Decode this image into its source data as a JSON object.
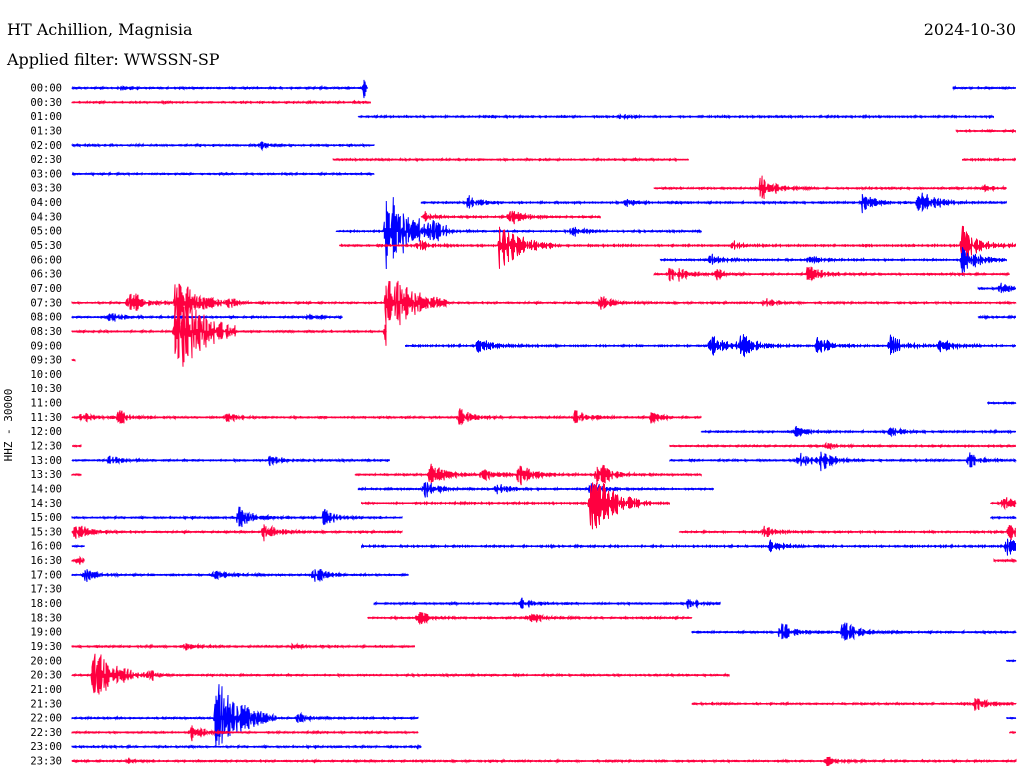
{
  "header": {
    "station": "HT Achillion, Magnisia",
    "filter": "Applied filter: WWSSN-SP",
    "date": "2024-10-30"
  },
  "chart_data": {
    "type": "line",
    "title": "HT Achillion, Magnisia",
    "subtitle": "Applied filter: WWSSN-SP",
    "date": "2024-10-30",
    "ylabel": "HHZ - 30000",
    "row_duration_min": 30,
    "colors": {
      "even": "#0000ff",
      "odd": "#ff0040"
    },
    "rows": [
      {
        "label": "00:00",
        "segments": [
          [
            0,
            9.4
          ],
          [
            28,
            30
          ]
        ],
        "events": [
          [
            1.5,
            3
          ],
          [
            9.3,
            12
          ]
        ]
      },
      {
        "label": "00:30",
        "segments": [
          [
            0,
            9.5
          ]
        ],
        "events": []
      },
      {
        "label": "01:00",
        "segments": [
          [
            9.1,
            29.3
          ]
        ],
        "events": [
          [
            17.4,
            3
          ]
        ]
      },
      {
        "label": "01:30",
        "segments": [
          [
            28.1,
            30
          ]
        ],
        "events": []
      },
      {
        "label": "02:00",
        "segments": [
          [
            0,
            9.6
          ]
        ],
        "events": [
          [
            6,
            4
          ]
        ]
      },
      {
        "label": "02:30",
        "segments": [
          [
            8.3,
            19.6
          ],
          [
            28.3,
            30
          ]
        ],
        "events": []
      },
      {
        "label": "03:00",
        "segments": [
          [
            0,
            9.6
          ]
        ],
        "events": []
      },
      {
        "label": "03:30",
        "segments": [
          [
            18.5,
            29.7
          ]
        ],
        "events": [
          [
            21.9,
            14
          ],
          [
            29,
            4
          ]
        ]
      },
      {
        "label": "04:00",
        "segments": [
          [
            11.1,
            29.7
          ]
        ],
        "events": [
          [
            12.6,
            8
          ],
          [
            17.6,
            5
          ],
          [
            25.1,
            10
          ],
          [
            26.9,
            18
          ]
        ]
      },
      {
        "label": "04:30",
        "segments": [
          [
            11.1,
            16.8
          ]
        ],
        "events": [
          [
            11.2,
            6
          ],
          [
            13.9,
            10
          ]
        ]
      },
      {
        "label": "05:00",
        "segments": [
          [
            8.4,
            20
          ]
        ],
        "events": [
          [
            10,
            45
          ],
          [
            11.5,
            6
          ],
          [
            15.9,
            7
          ]
        ]
      },
      {
        "label": "05:30",
        "segments": [
          [
            8.5,
            30
          ]
        ],
        "events": [
          [
            13.6,
            28
          ],
          [
            28.3,
            20
          ],
          [
            11,
            6
          ],
          [
            21,
            5
          ]
        ]
      },
      {
        "label": "06:00",
        "segments": [
          [
            18.7,
            29.7
          ]
        ],
        "events": [
          [
            28.3,
            18
          ],
          [
            20.3,
            6
          ],
          [
            23.4,
            6
          ]
        ]
      },
      {
        "label": "06:30",
        "segments": [
          [
            18.5,
            29.8
          ]
        ],
        "events": [
          [
            19,
            14
          ],
          [
            23.4,
            10
          ],
          [
            20.5,
            6
          ]
        ]
      },
      {
        "label": "07:00",
        "segments": [
          [
            28.8,
            30
          ]
        ],
        "events": [
          [
            29.5,
            6
          ]
        ]
      },
      {
        "label": "07:30",
        "segments": [
          [
            0,
            30
          ]
        ],
        "events": [
          [
            1.8,
            14
          ],
          [
            3.3,
            28
          ],
          [
            10,
            40
          ],
          [
            16.8,
            8
          ],
          [
            5,
            4
          ],
          [
            22,
            6
          ]
        ]
      },
      {
        "label": "08:00",
        "segments": [
          [
            0,
            8.6
          ],
          [
            28.8,
            30
          ]
        ],
        "events": [
          [
            1.2,
            6
          ],
          [
            7.5,
            4
          ]
        ]
      },
      {
        "label": "08:30",
        "segments": [
          [
            0,
            10
          ]
        ],
        "events": [
          [
            3.3,
            48
          ],
          [
            10,
            30
          ]
        ]
      },
      {
        "label": "09:00",
        "segments": [
          [
            10.6,
            30
          ]
        ],
        "events": [
          [
            12.9,
            10
          ],
          [
            20.3,
            12
          ],
          [
            21.2,
            14
          ],
          [
            23.7,
            12
          ],
          [
            26,
            12
          ],
          [
            27.6,
            8
          ]
        ]
      },
      {
        "label": "09:30",
        "segments": [
          [
            0,
            0.1
          ]
        ],
        "events": []
      },
      {
        "label": "10:00",
        "segments": [],
        "events": []
      },
      {
        "label": "10:30",
        "segments": [],
        "events": []
      },
      {
        "label": "11:00",
        "segments": [
          [
            29.1,
            30
          ]
        ],
        "events": []
      },
      {
        "label": "11:30",
        "segments": [
          [
            0,
            20
          ]
        ],
        "events": [
          [
            0.3,
            6
          ],
          [
            1.5,
            8
          ],
          [
            4.9,
            6
          ],
          [
            12.3,
            10
          ],
          [
            16,
            8
          ],
          [
            18.4,
            6
          ]
        ]
      },
      {
        "label": "12:00",
        "segments": [
          [
            20,
            30
          ]
        ],
        "events": [
          [
            23,
            5
          ],
          [
            26,
            5
          ]
        ]
      },
      {
        "label": "12:30",
        "segments": [
          [
            0,
            0.3
          ],
          [
            19,
            30
          ]
        ],
        "events": [
          [
            24,
            4
          ]
        ]
      },
      {
        "label": "13:00",
        "segments": [
          [
            0,
            10.1
          ],
          [
            19,
            30
          ]
        ],
        "events": [
          [
            6.3,
            8
          ],
          [
            1.2,
            6
          ],
          [
            23.1,
            10
          ],
          [
            23.8,
            10
          ],
          [
            28.5,
            8
          ]
        ]
      },
      {
        "label": "13:30",
        "segments": [
          [
            0,
            0.3
          ],
          [
            9,
            20
          ]
        ],
        "events": [
          [
            11.4,
            14
          ],
          [
            14.2,
            12
          ],
          [
            16.7,
            14
          ],
          [
            13,
            8
          ]
        ]
      },
      {
        "label": "14:00",
        "segments": [
          [
            9.1,
            20.4
          ]
        ],
        "events": [
          [
            11.2,
            10
          ],
          [
            16.5,
            10
          ],
          [
            13.5,
            6
          ]
        ]
      },
      {
        "label": "14:30",
        "segments": [
          [
            9.2,
            19
          ],
          [
            29.2,
            30
          ]
        ],
        "events": [
          [
            16.5,
            34
          ],
          [
            29.6,
            8
          ]
        ]
      },
      {
        "label": "15:00",
        "segments": [
          [
            0,
            10.5
          ],
          [
            29.2,
            30
          ]
        ],
        "events": [
          [
            5.3,
            12
          ],
          [
            8,
            10
          ]
        ]
      },
      {
        "label": "15:30",
        "segments": [
          [
            0,
            10.5
          ],
          [
            19.3,
            30
          ]
        ],
        "events": [
          [
            0.1,
            10
          ],
          [
            6.1,
            10
          ],
          [
            29.8,
            10
          ],
          [
            22,
            6
          ]
        ]
      },
      {
        "label": "16:00",
        "segments": [
          [
            0,
            0.4
          ],
          [
            9.2,
            30
          ]
        ],
        "events": [
          [
            22.2,
            8
          ],
          [
            29.7,
            10
          ]
        ]
      },
      {
        "label": "16:30",
        "segments": [
          [
            0,
            0.4
          ],
          [
            29.3,
            30
          ]
        ],
        "events": [
          [
            0.2,
            4
          ]
        ]
      },
      {
        "label": "17:00",
        "segments": [
          [
            0,
            10.7
          ]
        ],
        "events": [
          [
            0.4,
            8
          ],
          [
            4.5,
            6
          ],
          [
            7.7,
            10
          ]
        ]
      },
      {
        "label": "17:30",
        "segments": [],
        "events": []
      },
      {
        "label": "18:00",
        "segments": [
          [
            9.6,
            20.6
          ]
        ],
        "events": [
          [
            14.3,
            6
          ],
          [
            19.6,
            6
          ]
        ]
      },
      {
        "label": "18:30",
        "segments": [
          [
            9.4,
            19.7
          ]
        ],
        "events": [
          [
            11,
            8
          ],
          [
            14.5,
            8
          ]
        ]
      },
      {
        "label": "19:00",
        "segments": [
          [
            19.7,
            30
          ]
        ],
        "events": [
          [
            22.5,
            12
          ],
          [
            24.5,
            14
          ]
        ]
      },
      {
        "label": "19:30",
        "segments": [
          [
            0,
            10.9
          ]
        ],
        "events": [
          [
            3.6,
            6
          ],
          [
            7,
            4
          ]
        ]
      },
      {
        "label": "20:00",
        "segments": [
          [
            29.7,
            30
          ]
        ],
        "events": []
      },
      {
        "label": "20:30",
        "segments": [
          [
            0,
            20.9
          ]
        ],
        "events": [
          [
            0.7,
            30
          ],
          [
            2.5,
            4
          ]
        ]
      },
      {
        "label": "21:00",
        "segments": [],
        "events": []
      },
      {
        "label": "21:30",
        "segments": [
          [
            19.7,
            30
          ]
        ],
        "events": [
          [
            28.7,
            8
          ]
        ]
      },
      {
        "label": "22:00",
        "segments": [
          [
            0,
            11
          ],
          [
            29.7,
            30
          ]
        ],
        "events": [
          [
            4.6,
            40
          ],
          [
            7.2,
            6
          ]
        ]
      },
      {
        "label": "22:30",
        "segments": [
          [
            0,
            11
          ],
          [
            29.8,
            30
          ]
        ],
        "events": [
          [
            3.8,
            10
          ]
        ]
      },
      {
        "label": "23:00",
        "segments": [
          [
            0,
            11.1
          ]
        ],
        "events": [
          [
            11,
            3
          ]
        ]
      },
      {
        "label": "23:30",
        "segments": [
          [
            0,
            30
          ]
        ],
        "events": [
          [
            24,
            5
          ],
          [
            1.8,
            3
          ]
        ]
      }
    ]
  }
}
